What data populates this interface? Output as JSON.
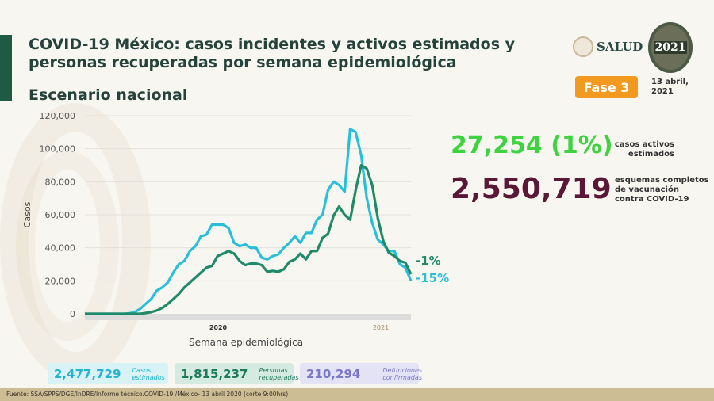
{
  "header": {
    "title": "COVID-19 México: casos incidentes y activos estimados y personas recuperadas por semana epidemiológica",
    "subtitle": "Escenario nacional",
    "logo_salud": "SALUD",
    "logo_2021": "2021",
    "phase": "Fase 3",
    "date": "13 abril, 2021"
  },
  "highlights": {
    "active": {
      "value": "27,254 (1%)",
      "label": "casos activos estimados",
      "color": "#3fd43f"
    },
    "vaccination": {
      "value": "2,550,719",
      "label": "esquemas completos de vacunación contra COVID-19",
      "color": "#5a1836"
    }
  },
  "chart_data": {
    "type": "line",
    "title": "",
    "xlabel": "Semana epidemiológica",
    "ylabel": "Casos",
    "ylim": [
      0,
      120000
    ],
    "yticks": [
      "0",
      "20,000",
      "40,000",
      "60,000",
      "80,000",
      "100,000",
      "120,000"
    ],
    "year_labels": [
      "2020",
      "2021"
    ],
    "grid": true,
    "series": [
      {
        "color": "#29bfd8",
        "end_label": "-15%",
        "values": [
          0,
          0,
          0,
          0,
          0,
          0,
          0,
          0,
          300,
          1000,
          3000,
          6000,
          9000,
          14000,
          16000,
          19000,
          25000,
          30000,
          32000,
          38000,
          41000,
          47000,
          48000,
          54000,
          54000,
          54000,
          52000,
          43000,
          41000,
          42000,
          40000,
          40000,
          34000,
          33000,
          35000,
          36000,
          40000,
          43000,
          47000,
          43000,
          49000,
          49000,
          57000,
          60000,
          75000,
          80000,
          78000,
          74000,
          112000,
          110000,
          96000,
          70000,
          55000,
          45000,
          42000,
          38000,
          38000,
          30000,
          28000,
          20000
        ]
      },
      {
        "color": "#1f8a68",
        "end_label": "-1%",
        "values": [
          0,
          0,
          0,
          0,
          0,
          0,
          0,
          0,
          0,
          0,
          0,
          500,
          1000,
          2000,
          3500,
          6000,
          9000,
          12000,
          16000,
          19000,
          22000,
          25000,
          28000,
          29000,
          35000,
          36500,
          38000,
          36500,
          32000,
          29500,
          30500,
          30500,
          29500,
          25500,
          26000,
          25500,
          27000,
          31500,
          33000,
          36500,
          33000,
          38000,
          38000,
          46000,
          48500,
          59500,
          65000,
          60000,
          57000,
          75000,
          90000,
          88000,
          78000,
          58000,
          44000,
          37000,
          35000,
          32000,
          31000,
          24000
        ]
      }
    ]
  },
  "summary": [
    {
      "value": "2,477,729",
      "label": "Casos estimados",
      "bg": "#d8f2f5",
      "color": "#25b4cc"
    },
    {
      "value": "1,815,237",
      "label": "Personas recuperadas",
      "bg": "#d5ebe2",
      "color": "#1d7a5c"
    },
    {
      "value": "210,294",
      "label": "Defunciones confirmadas",
      "bg": "#e4e3f6",
      "color": "#7c78c8"
    }
  ],
  "footer": "Fuente: SSA/SPPS/DGE/InDRE/Informe técnico.COVID-19 /México- 13 abril 2020 (corte 9:00hrs)"
}
